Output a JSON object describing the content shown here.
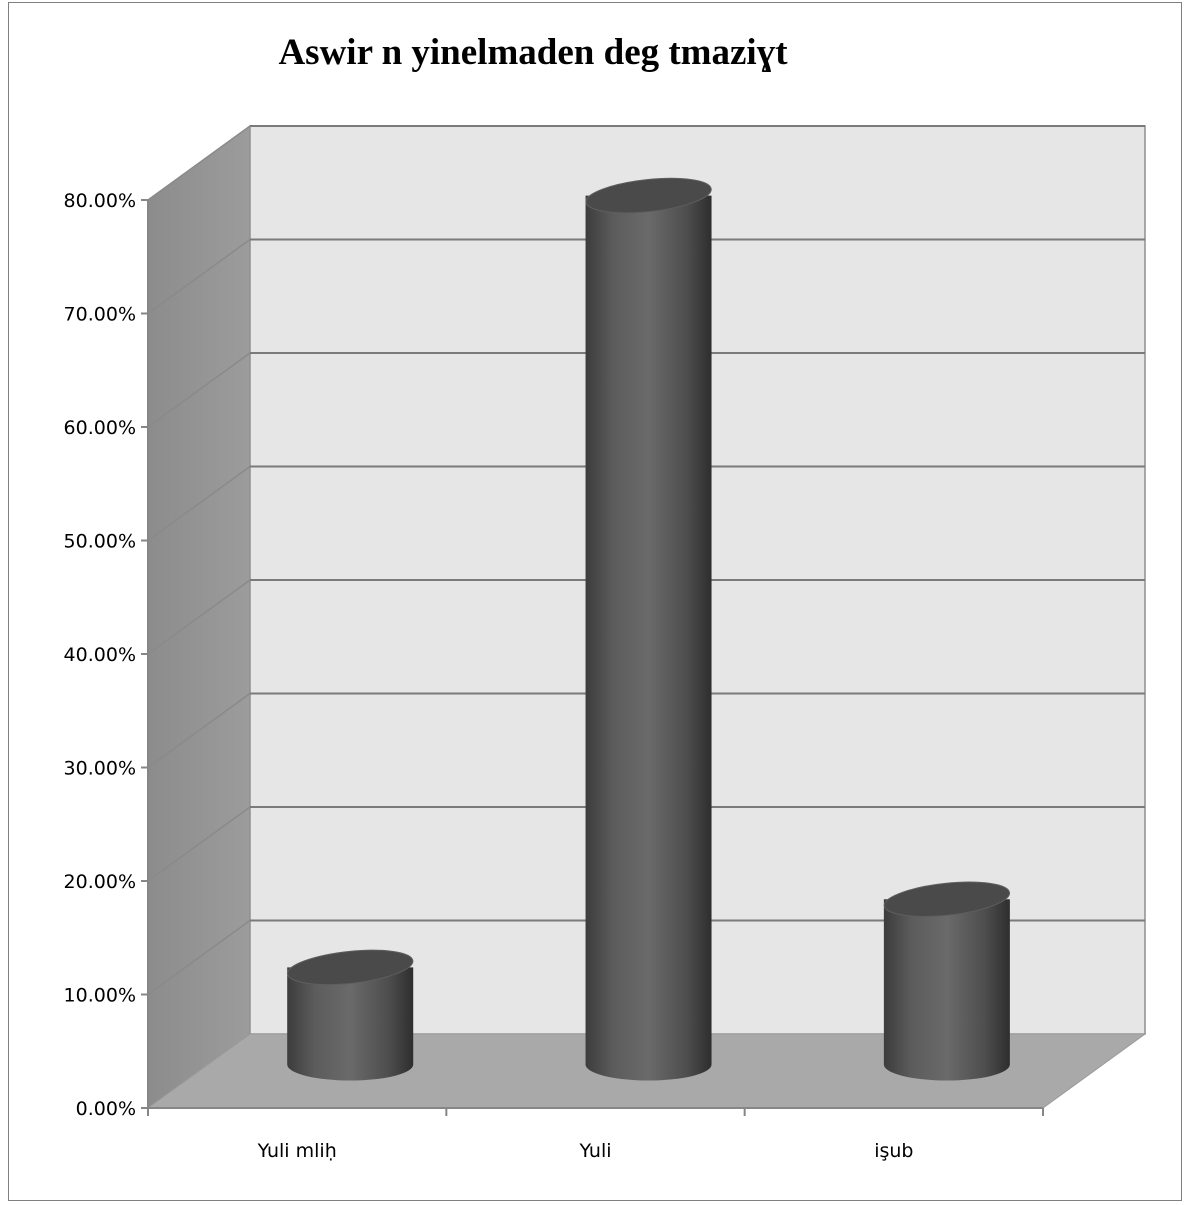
{
  "chart_data": {
    "type": "bar",
    "style": "3d-cylinder",
    "title": "Aswir n yinelmaden deg tmaziɣt",
    "xlabel": "",
    "ylabel": "",
    "categories": [
      "Yuli mliḥ",
      "Yuli",
      "işub"
    ],
    "values": [
      0.09,
      0.77,
      0.15
    ],
    "ylim": [
      0,
      0.8
    ],
    "yticks": [
      0,
      0.1,
      0.2,
      0.3,
      0.4,
      0.5,
      0.6,
      0.7,
      0.8
    ],
    "ytick_labels": [
      "0.00%",
      "10.00%",
      "20.00%",
      "30.00%",
      "40.00%",
      "50.00%",
      "60.00%",
      "70.00%",
      "80.00%"
    ],
    "grid": true,
    "legend": "none",
    "colors": {
      "bar": "#5a5a5a",
      "bar_top": "#4a4a4a",
      "back_wall": "#e6e6e6",
      "side_wall": "#959595",
      "floor": "#a9a9a9",
      "grid": "#7a7a7a"
    }
  }
}
